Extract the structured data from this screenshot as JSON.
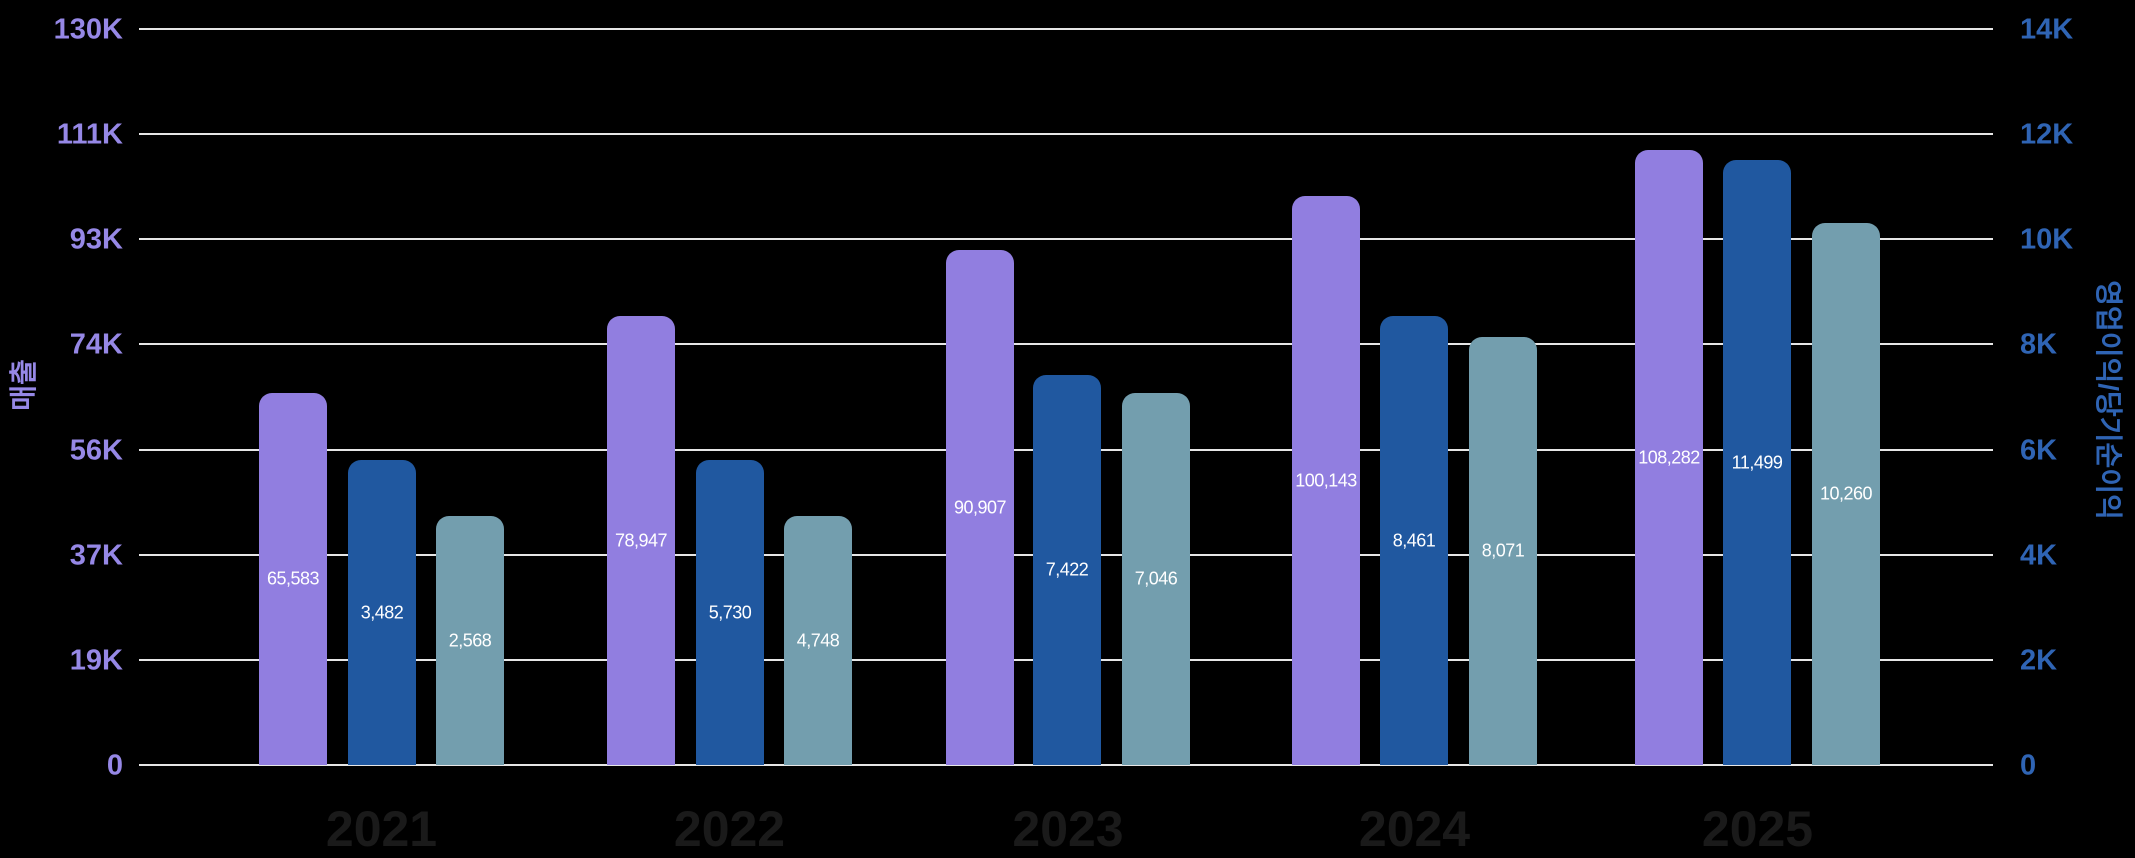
{
  "chart_data": {
    "type": "bar",
    "title": "",
    "categories": [
      "2021",
      "2022",
      "2023",
      "2024",
      "2025"
    ],
    "series": [
      {
        "name": "매출",
        "axis": "left",
        "color": "#917ee0",
        "values": [
          65583,
          78947,
          90907,
          100143,
          108282
        ],
        "labels": [
          "65,583",
          "78,947",
          "90,907",
          "100,143",
          "108,282"
        ]
      },
      {
        "name": "영업이익",
        "axis": "right",
        "color": "#2058a0",
        "values": [
          3482,
          5730,
          7422,
          8461,
          11499
        ],
        "labels": [
          "3,482",
          "5,730",
          "7,422",
          "8,461",
          "11,499"
        ]
      },
      {
        "name": "당기순이익",
        "axis": "right",
        "color": "#739eae",
        "values": [
          2568,
          4748,
          7046,
          8071,
          10260
        ],
        "labels": [
          "2,568",
          "4,748",
          "7,046",
          "8,071",
          "10,260"
        ]
      }
    ],
    "xlabel": "",
    "ylabel": "매출",
    "ylabel_right": "영업이익/당기순이익",
    "ylim": [
      0,
      130000
    ],
    "ylim_right": [
      0,
      14000
    ],
    "yticks_left": [
      "130K",
      "111K",
      "93K",
      "74K",
      "56K",
      "37K",
      "19K",
      "0"
    ],
    "yticks_right": [
      "14K",
      "12K",
      "10K",
      "8K",
      "6K",
      "4K",
      "2K",
      "0"
    ],
    "grid": true,
    "legend": "none"
  },
  "colors": {
    "background": "#000000",
    "left_axis": "#9688e6",
    "right_axis": "#2f64b4",
    "gridline": "#e6e6e6",
    "xtick": "#1a1a1a"
  }
}
